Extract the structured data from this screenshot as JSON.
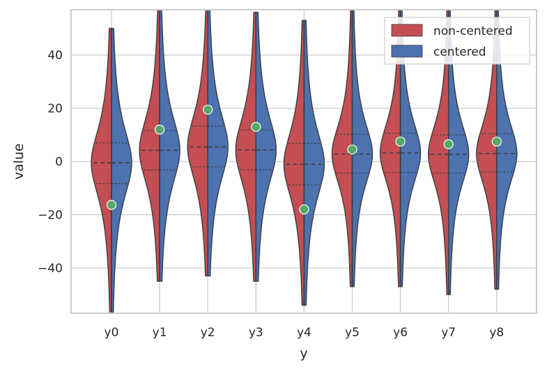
{
  "chart_data": {
    "type": "violin",
    "xlabel": "y",
    "ylabel": "value",
    "categories": [
      "y0",
      "y1",
      "y2",
      "y3",
      "y4",
      "y5",
      "y6",
      "y7",
      "y8"
    ],
    "ylim": [
      -57,
      57
    ],
    "yticks": [
      -40,
      -20,
      0,
      20,
      40
    ],
    "ytick_labels": [
      "−40",
      "−20",
      "0",
      "20",
      "40"
    ],
    "grid": true,
    "legend_position": "top-right",
    "series": [
      {
        "name": "non-centered",
        "color": "#c44e52",
        "side": "left",
        "medians": [
          -0.5,
          4.2,
          5.5,
          4.3,
          -1.0,
          2.8,
          3.2,
          2.7,
          3.0
        ],
        "q1": [
          -8.3,
          -3.2,
          -2.0,
          -3.1,
          -8.8,
          -4.4,
          -4.1,
          -4.4,
          -4.0
        ],
        "q3": [
          7.0,
          11.6,
          13.3,
          11.8,
          6.8,
          10.2,
          10.6,
          10.0,
          10.4
        ],
        "spread": [
          12.0,
          12.0,
          12.0,
          12.0,
          12.0,
          11.0,
          11.0,
          11.0,
          11.0
        ],
        "tail_low": [
          -57,
          -45,
          -43,
          -45,
          -54,
          -47,
          -47,
          -50,
          -48
        ],
        "tail_high": [
          50,
          57,
          57,
          56,
          53,
          57,
          57,
          57,
          57
        ]
      },
      {
        "name": "centered",
        "color": "#4c72b0",
        "side": "right",
        "medians": [
          -0.5,
          4.2,
          5.5,
          4.3,
          -1.0,
          2.8,
          3.2,
          2.7,
          3.0
        ],
        "q1": [
          -8.3,
          -3.2,
          -2.0,
          -3.1,
          -8.8,
          -4.4,
          -4.1,
          -4.4,
          -4.0
        ],
        "q3": [
          7.0,
          11.6,
          13.3,
          11.8,
          6.8,
          10.2,
          10.6,
          10.0,
          10.4
        ],
        "spread": [
          12.0,
          12.0,
          12.0,
          12.0,
          12.0,
          11.0,
          11.0,
          11.0,
          11.0
        ],
        "tail_low": [
          -57,
          -45,
          -43,
          -45,
          -54,
          -47,
          -47,
          -50,
          -48
        ],
        "tail_high": [
          50,
          57,
          57,
          56,
          53,
          57,
          57,
          57,
          57
        ]
      }
    ],
    "points": {
      "color": "#55a868",
      "values": [
        -16.3,
        12.0,
        19.5,
        13.0,
        -18.0,
        4.5,
        7.5,
        6.5,
        7.5
      ]
    }
  }
}
